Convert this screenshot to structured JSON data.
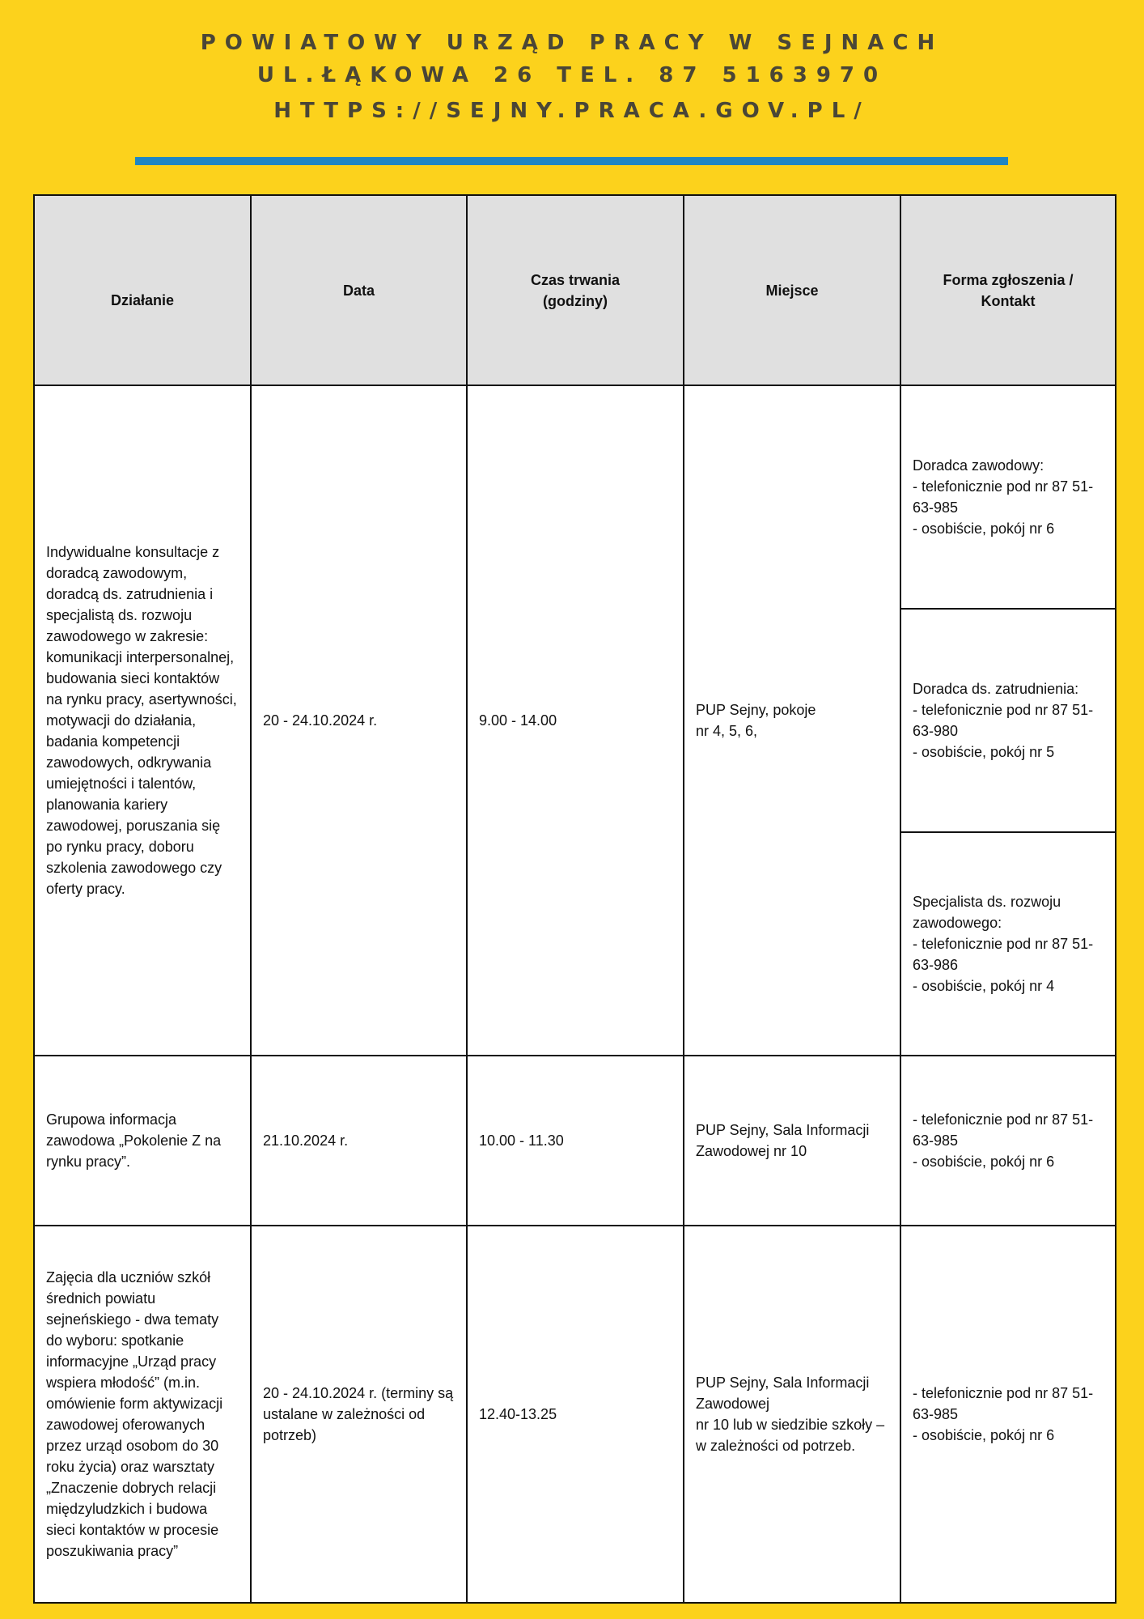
{
  "header": {
    "line1": "POWIATOWY URZĄD PRACY W SEJNACH",
    "line2": "UL.ŁĄKOWA 26 TEL. 87 5163970",
    "line3": "HTTPS://SEJNY.PRACA.GOV.PL/",
    "accent_bar_color": "#1f86c4",
    "background_color": "#fcd21c"
  },
  "table": {
    "columns": [
      "Działanie",
      "Data",
      "Czas trwania\n(godziny)",
      "Miejsce",
      "Forma zgłoszenia /\nKontakt"
    ],
    "rows": [
      {
        "dzialanie": "Indywidualne konsultacje z doradcą zawodowym, doradcą ds. zatrudnienia i specjalistą ds. rozwoju zawodowego w zakresie: komunikacji interpersonalnej, budowania sieci kontaktów na rynku pracy, asertywności, motywacji do działania, badania kompetencji zawodowych, odkrywania umiejętności i talentów, planowania kariery zawodowej, poruszania się po rynku pracy, doboru szkolenia zawodowego czy oferty pracy.",
        "data": "20 - 24.10.2024 r.",
        "czas": "9.00 - 14.00",
        "miejsce": "PUP Sejny, pokoje\nnr 4, 5, 6,",
        "kontakt": [
          "Doradca zawodowy:\n- telefonicznie pod nr 87 51-63-985\n- osobiście, pokój nr 6",
          "Doradca ds. zatrudnienia:\n- telefonicznie pod nr 87 51-63-980\n- osobiście, pokój nr 5",
          "Specjalista ds. rozwoju zawodowego:\n- telefonicznie pod nr 87 51-63-986\n- osobiście, pokój nr 4"
        ]
      },
      {
        "dzialanie": "Grupowa informacja zawodowa „Pokolenie Z na rynku pracy”.",
        "data": "21.10.2024 r.",
        "czas": "10.00 - 11.30",
        "miejsce": "PUP Sejny, Sala Informacji Zawodowej nr 10",
        "kontakt": "- telefonicznie pod nr 87 51-63-985\n- osobiście, pokój nr 6"
      },
      {
        "dzialanie": "Zajęcia dla uczniów szkół średnich powiatu sejneńskiego - dwa tematy do wyboru: spotkanie informacyjne „Urząd pracy wspiera młodość” (m.in. omówienie form aktywizacji zawodowej oferowanych przez urząd osobom do 30 roku życia) oraz warsztaty „Znaczenie dobrych relacji międzyludzkich i budowa sieci kontaktów w procesie poszukiwania pracy”",
        "data": "20 - 24.10.2024 r. (terminy są ustalane w zależności od potrzeb)",
        "czas": "12.40-13.25",
        "miejsce": "PUP Sejny, Sala Informacji Zawodowej\nnr 10 lub w siedzibie szkoły – w zależności od potrzeb.",
        "kontakt": "- telefonicznie pod nr 87 51-63-985\n- osobiście, pokój nr 6"
      }
    ]
  }
}
